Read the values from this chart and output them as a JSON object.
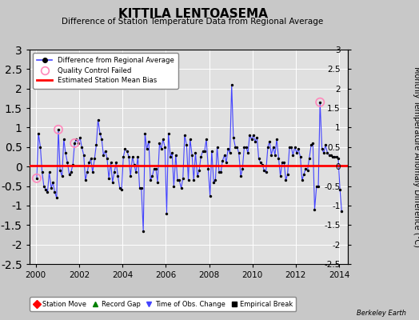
{
  "title": "KITTILA LENTOASEMA",
  "subtitle": "Difference of Station Temperature Data from Regional Average",
  "ylabel": "Monthly Temperature Anomaly Difference (°C)",
  "bias_value": 0.02,
  "ylim": [
    -2.5,
    3.0
  ],
  "xlim": [
    1999.7,
    2014.4
  ],
  "xticks": [
    2000,
    2002,
    2004,
    2006,
    2008,
    2010,
    2012,
    2014
  ],
  "yticks_right": [
    -2.5,
    -2,
    -1.5,
    -1,
    -0.5,
    0,
    0.5,
    1,
    1.5,
    2,
    2.5,
    3
  ],
  "ytick_labels_right": [
    "-2.5",
    "-2",
    "-1.5",
    "-1",
    "-0.5",
    "0",
    "0.5",
    "1",
    "1.5",
    "2",
    "2.5",
    "3"
  ],
  "line_color": "#4444FF",
  "marker_color": "#000000",
  "bias_color": "#FF0000",
  "qc_fail_color": "#FF88BB",
  "fig_bg": "#C8C8C8",
  "plot_bg": "#E0E0E0",
  "watermark": "Berkeley Earth",
  "times": [
    2000.04,
    2000.12,
    2000.21,
    2000.29,
    2000.37,
    2000.46,
    2000.54,
    2000.62,
    2000.71,
    2000.79,
    2000.87,
    2000.96,
    2001.04,
    2001.12,
    2001.21,
    2001.29,
    2001.37,
    2001.46,
    2001.54,
    2001.62,
    2001.71,
    2001.79,
    2001.87,
    2001.96,
    2002.04,
    2002.12,
    2002.21,
    2002.29,
    2002.37,
    2002.46,
    2002.54,
    2002.62,
    2002.71,
    2002.79,
    2002.87,
    2002.96,
    2003.04,
    2003.12,
    2003.21,
    2003.29,
    2003.37,
    2003.46,
    2003.54,
    2003.62,
    2003.71,
    2003.79,
    2003.87,
    2003.96,
    2004.04,
    2004.12,
    2004.21,
    2004.29,
    2004.37,
    2004.46,
    2004.54,
    2004.62,
    2004.71,
    2004.79,
    2004.87,
    2004.96,
    2005.04,
    2005.12,
    2005.21,
    2005.29,
    2005.37,
    2005.46,
    2005.54,
    2005.62,
    2005.71,
    2005.79,
    2005.87,
    2005.96,
    2006.04,
    2006.12,
    2006.21,
    2006.29,
    2006.37,
    2006.46,
    2006.54,
    2006.62,
    2006.71,
    2006.79,
    2006.87,
    2006.96,
    2007.04,
    2007.12,
    2007.21,
    2007.29,
    2007.37,
    2007.46,
    2007.54,
    2007.62,
    2007.71,
    2007.79,
    2007.87,
    2007.96,
    2008.04,
    2008.12,
    2008.21,
    2008.29,
    2008.37,
    2008.46,
    2008.54,
    2008.62,
    2008.71,
    2008.79,
    2008.87,
    2008.96,
    2009.04,
    2009.12,
    2009.21,
    2009.29,
    2009.37,
    2009.46,
    2009.54,
    2009.62,
    2009.71,
    2009.79,
    2009.87,
    2009.96,
    2010.04,
    2010.12,
    2010.21,
    2010.29,
    2010.37,
    2010.46,
    2010.54,
    2010.62,
    2010.71,
    2010.79,
    2010.87,
    2010.96,
    2011.04,
    2011.12,
    2011.21,
    2011.29,
    2011.37,
    2011.46,
    2011.54,
    2011.62,
    2011.71,
    2011.79,
    2011.87,
    2011.96,
    2012.04,
    2012.12,
    2012.21,
    2012.29,
    2012.37,
    2012.46,
    2012.54,
    2012.62,
    2012.71,
    2012.79,
    2012.87,
    2012.96,
    2013.04,
    2013.12,
    2013.21,
    2013.29,
    2013.37,
    2013.46,
    2013.54,
    2013.62,
    2013.71,
    2013.79,
    2013.87,
    2013.96,
    2014.04,
    2014.12
  ],
  "values": [
    -0.3,
    0.85,
    0.5,
    -0.15,
    -0.5,
    -0.6,
    -0.65,
    -0.15,
    -0.55,
    -0.4,
    -0.65,
    -0.8,
    0.95,
    -0.1,
    -0.25,
    0.7,
    0.35,
    0.1,
    -0.2,
    -0.15,
    0.05,
    0.6,
    0.7,
    0.6,
    0.75,
    0.5,
    0.3,
    -0.35,
    -0.15,
    0.1,
    0.2,
    -0.15,
    0.2,
    0.55,
    1.2,
    0.85,
    0.7,
    0.3,
    0.4,
    0.2,
    -0.3,
    0.1,
    -0.4,
    -0.15,
    0.1,
    -0.25,
    -0.55,
    -0.6,
    0.25,
    0.45,
    0.4,
    0.25,
    -0.25,
    0.25,
    0.05,
    -0.15,
    0.25,
    -0.55,
    -0.55,
    -1.65,
    0.85,
    0.45,
    0.65,
    -0.35,
    -0.25,
    -0.05,
    -0.05,
    -0.4,
    0.6,
    0.45,
    0.7,
    0.5,
    -1.2,
    0.85,
    0.25,
    0.35,
    -0.5,
    0.3,
    -0.35,
    -0.35,
    -0.55,
    -0.3,
    0.8,
    0.55,
    -0.35,
    0.7,
    0.3,
    -0.35,
    0.35,
    -0.25,
    -0.1,
    0.25,
    0.4,
    0.4,
    0.7,
    -0.05,
    -0.75,
    0.4,
    -0.4,
    -0.35,
    0.5,
    -0.15,
    -0.15,
    0.15,
    0.3,
    0.1,
    0.45,
    0.35,
    2.1,
    0.75,
    0.5,
    0.5,
    0.35,
    -0.25,
    -0.05,
    0.5,
    0.5,
    0.35,
    0.8,
    0.7,
    0.8,
    0.65,
    0.75,
    0.2,
    0.1,
    0.05,
    -0.1,
    -0.15,
    0.5,
    0.65,
    0.3,
    0.5,
    0.3,
    0.7,
    0.2,
    -0.25,
    0.1,
    0.1,
    -0.35,
    -0.2,
    0.5,
    0.5,
    0.3,
    0.5,
    0.35,
    0.45,
    0.25,
    -0.35,
    -0.2,
    -0.05,
    -0.1,
    0.2,
    0.55,
    0.6,
    -1.1,
    -0.5,
    -0.5,
    1.65,
    0.45,
    0.35,
    0.55,
    0.35,
    0.3,
    0.3,
    0.25,
    0.25,
    0.25,
    0.2,
    -0.6,
    -1.15
  ],
  "qc_fail_times": [
    2000.04,
    2001.04,
    2001.79,
    2013.12
  ],
  "qc_fail_values": [
    -0.3,
    0.95,
    0.6,
    1.65
  ]
}
